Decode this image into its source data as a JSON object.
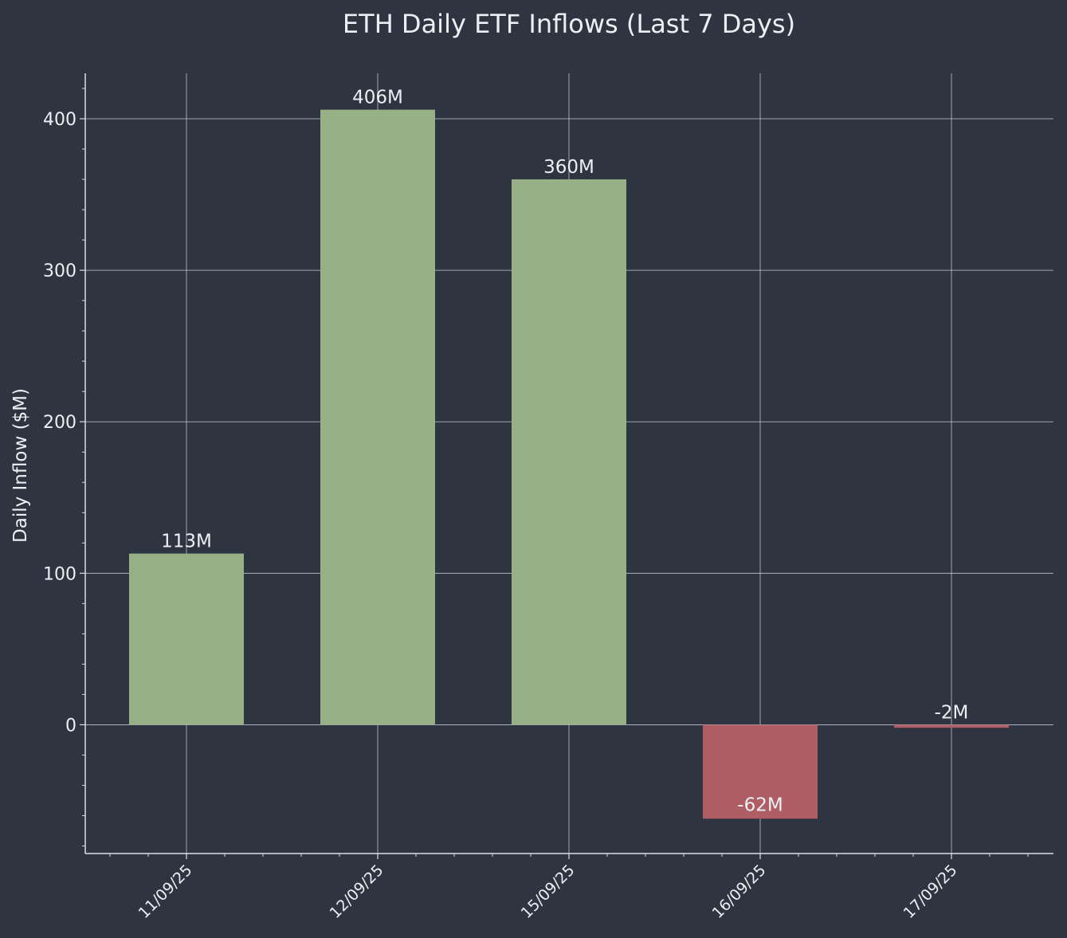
{
  "chart_data": {
    "type": "bar",
    "title": "ETH Daily ETF Inflows (Last 7 Days)",
    "xlabel": "",
    "ylabel": "Daily Inflow ($M)",
    "categories": [
      "11/09/25",
      "12/09/25",
      "15/09/25",
      "16/09/25",
      "17/09/25"
    ],
    "values": [
      113,
      406,
      360,
      -62,
      -2
    ],
    "data_labels": [
      "113M",
      "406M",
      "360M",
      "-62M",
      "-2M"
    ],
    "ylim": [
      -85,
      430
    ],
    "yticks": [
      0,
      100,
      200,
      300,
      400
    ],
    "grid": true,
    "colors": {
      "positive": "#97b085",
      "negative": "#b05e65",
      "background": "#2e3440",
      "text": "#eceff4",
      "grid": "#d8dee9"
    }
  }
}
